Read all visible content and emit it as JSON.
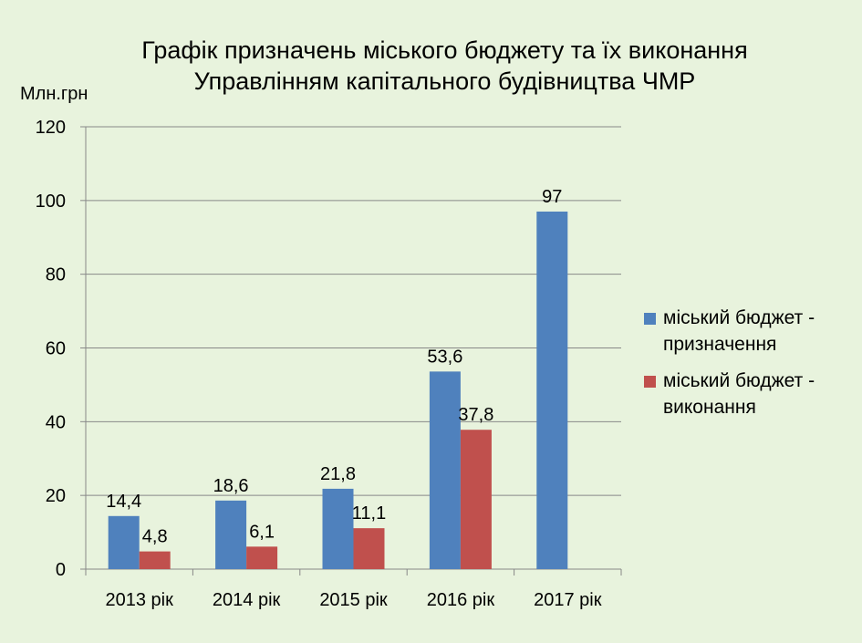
{
  "chart_data": {
    "type": "bar",
    "title": [
      "Графік призначень міського бюджету та їх виконання",
      "Управлінням капітального будівництва ЧМР"
    ],
    "ylabel": "Млн.грн",
    "xlabel": "",
    "categories": [
      "2013 рік",
      "2014 рік",
      "2015 рік",
      "2016 рік",
      "2017 рік"
    ],
    "ylim": [
      0,
      120
    ],
    "yticks": [
      0,
      20,
      40,
      60,
      80,
      100,
      120
    ],
    "grid": true,
    "legend_position": "right",
    "series": [
      {
        "name": "міський бюджет - призначення",
        "color": "#4f81bd",
        "values": [
          14.4,
          18.6,
          21.8,
          53.6,
          97
        ],
        "labels": [
          "14,4",
          "18,6",
          "21,8",
          "53,6",
          "97"
        ]
      },
      {
        "name": "міський бюджет - виконання",
        "color": "#c0504d",
        "values": [
          4.8,
          6.1,
          11.1,
          37.8,
          null
        ],
        "labels": [
          "4,8",
          "6,1",
          "11,1",
          "37,8",
          ""
        ]
      }
    ]
  }
}
